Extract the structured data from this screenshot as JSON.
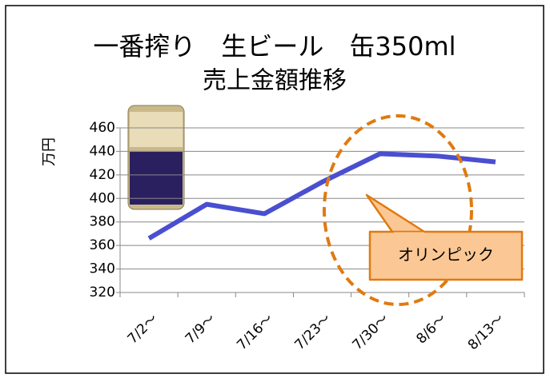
{
  "chart_data": {
    "type": "line",
    "title": "一番搾り　生ビール　缶350ml",
    "subtitle": "売上金額推移",
    "y_label": "万円",
    "categories": [
      "7/2～",
      "7/9～",
      "7/16～",
      "7/23～",
      "7/30～",
      "8/6～",
      "8/13～"
    ],
    "series": [
      {
        "name": "売上金額",
        "color": "#4a4fd0",
        "values": [
          366,
          395,
          387,
          414,
          438,
          436,
          431
        ]
      }
    ],
    "ylim": [
      320,
      460
    ],
    "yticks": [
      320,
      340,
      360,
      380,
      400,
      420,
      440,
      460
    ],
    "grid": true,
    "annotation": "オリンピック"
  }
}
